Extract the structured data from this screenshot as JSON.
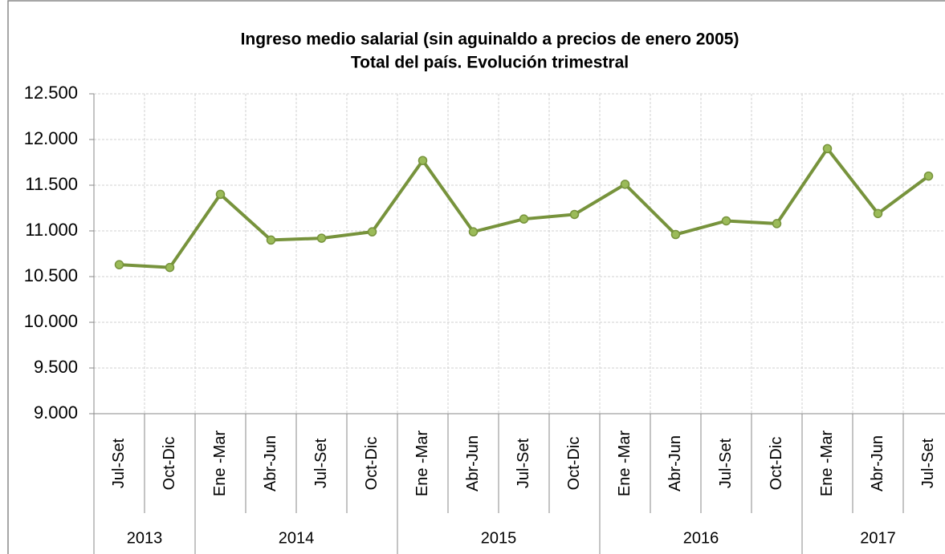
{
  "chart_data": {
    "type": "line",
    "title": [
      "Ingreso medio salarial (sin aguinaldo a precios de enero 2005)",
      "Total del país. Evolución trimestral"
    ],
    "groups": [
      {
        "name": "2013",
        "categories": [
          "Jul-Set",
          "Oct-Dic"
        ]
      },
      {
        "name": "2014",
        "categories": [
          "Ene -Mar",
          "Abr-Jun",
          "Jul-Set",
          "Oct-Dic"
        ]
      },
      {
        "name": "2015",
        "categories": [
          "Ene -Mar",
          "Abr-Jun",
          "Jul-Set",
          "Oct-Dic"
        ]
      },
      {
        "name": "2016",
        "categories": [
          "Ene -Mar",
          "Abr-Jun",
          "Jul-Set",
          "Oct-Dic"
        ]
      },
      {
        "name": "2017",
        "categories": [
          "Ene -Mar",
          "Abr-Jun",
          "Jul-Set"
        ]
      }
    ],
    "values": [
      10630,
      10600,
      11400,
      10900,
      10920,
      10990,
      11770,
      10990,
      11130,
      11180,
      11510,
      10960,
      11110,
      11080,
      11900,
      11190,
      11600
    ],
    "color": "#77933c",
    "marker_color": "#9bbb59",
    "ylim": [
      9000,
      12500
    ],
    "yticks": [
      {
        "value": 9000,
        "label": "9.000"
      },
      {
        "value": 9500,
        "label": "9.500"
      },
      {
        "value": 10000,
        "label": "10.000"
      },
      {
        "value": 10500,
        "label": "10.500"
      },
      {
        "value": 11000,
        "label": "11.000"
      },
      {
        "value": 11500,
        "label": "11.500"
      },
      {
        "value": 12000,
        "label": "12.000"
      },
      {
        "value": 12500,
        "label": "12.500"
      }
    ],
    "grid": true
  }
}
